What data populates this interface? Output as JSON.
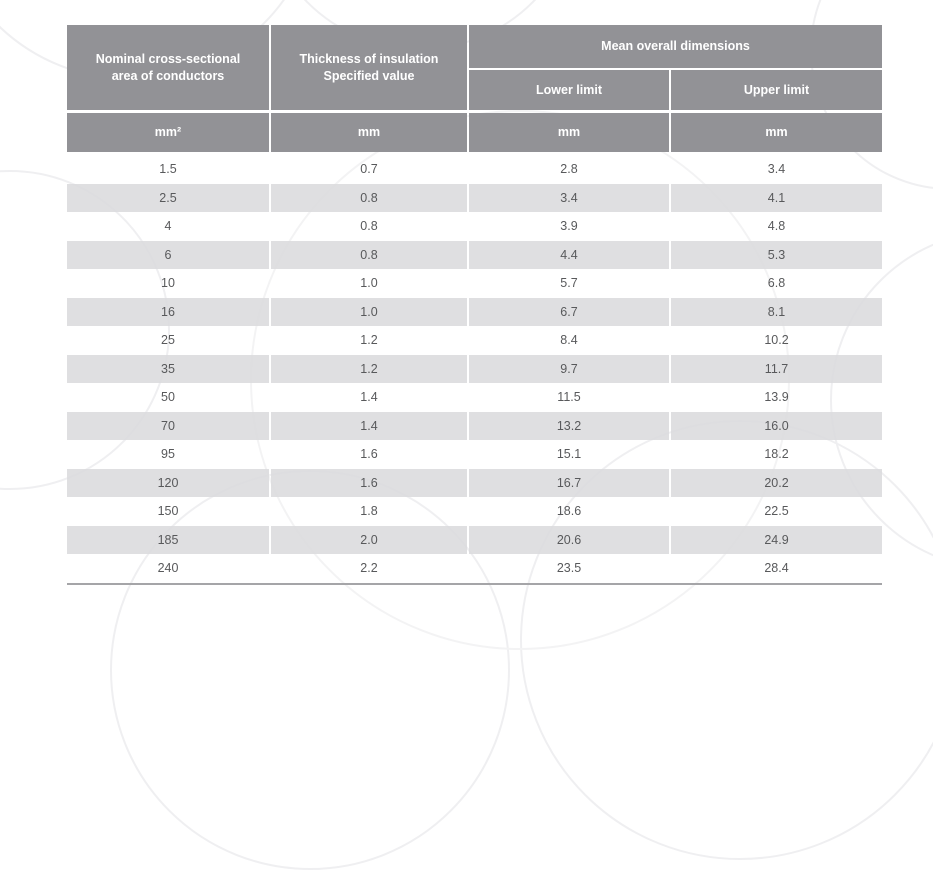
{
  "table": {
    "headers": {
      "col1": "Nominal cross-sectional\narea of conductors",
      "col2": "Thickness of insulation\nSpecified value",
      "group": "Mean overall dimensions",
      "sub_lower": "Lower limit",
      "sub_upper": "Upper limit"
    },
    "units": [
      "mm²",
      "mm",
      "mm",
      "mm"
    ],
    "rows": [
      [
        "1.5",
        "0.7",
        "2.8",
        "3.4"
      ],
      [
        "2.5",
        "0.8",
        "3.4",
        "4.1"
      ],
      [
        "4",
        "0.8",
        "3.9",
        "4.8"
      ],
      [
        "6",
        "0.8",
        "4.4",
        "5.3"
      ],
      [
        "10",
        "1.0",
        "5.7",
        "6.8"
      ],
      [
        "16",
        "1.0",
        "6.7",
        "8.1"
      ],
      [
        "25",
        "1.2",
        "8.4",
        "10.2"
      ],
      [
        "35",
        "1.2",
        "9.7",
        "11.7"
      ],
      [
        "50",
        "1.4",
        "11.5",
        "13.9"
      ],
      [
        "70",
        "1.4",
        "13.2",
        "16.0"
      ],
      [
        "95",
        "1.6",
        "15.1",
        "18.2"
      ],
      [
        "120",
        "1.6",
        "16.7",
        "20.2"
      ],
      [
        "150",
        "1.8",
        "18.6",
        "22.5"
      ],
      [
        "185",
        "2.0",
        "20.6",
        "24.9"
      ],
      [
        "240",
        "2.2",
        "23.5",
        "28.4"
      ]
    ]
  },
  "colors": {
    "header_bg": "#929296",
    "header_text": "#ffffff",
    "stripe_bg": "#dbdbdd",
    "data_text": "#58595b",
    "bottom_rule": "#a5a5a8"
  }
}
